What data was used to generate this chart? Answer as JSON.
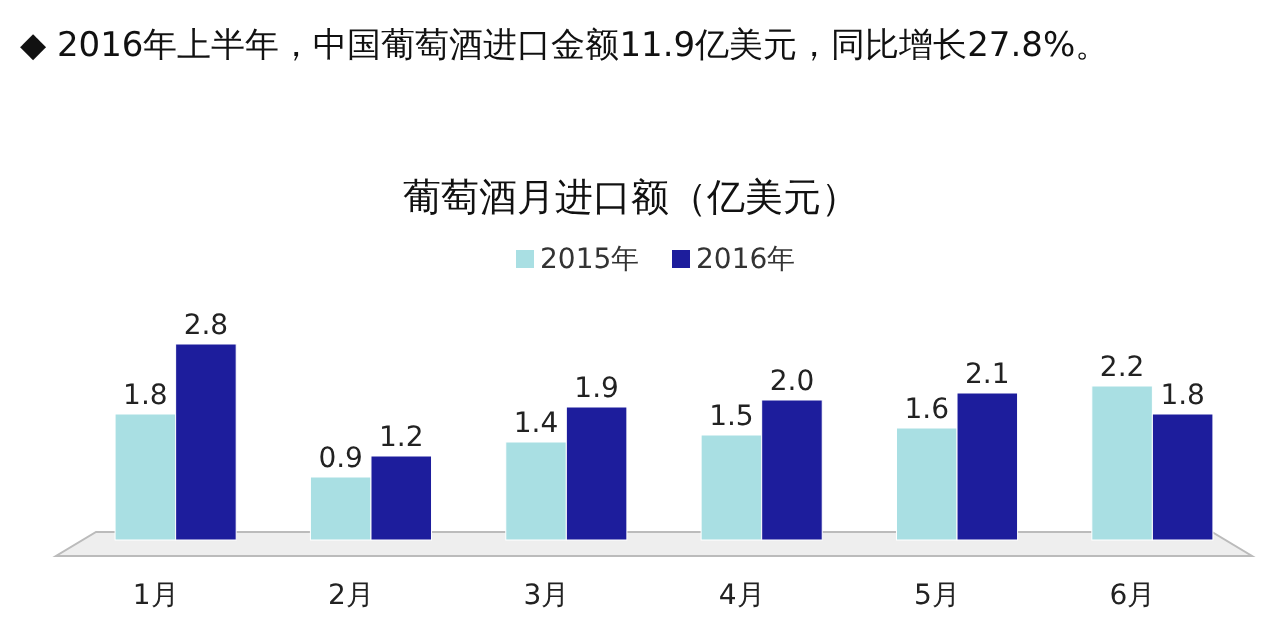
{
  "chart_data": {
    "type": "bar",
    "title": "◆ 2016年上半年，中国葡萄酒进口金额11.9亿美元，同比增长27.8%。",
    "subtitle": "葡萄酒月进口额（亿美元）",
    "categories": [
      "1月",
      "2月",
      "3月",
      "4月",
      "5月",
      "6月"
    ],
    "series": [
      {
        "name": "2015年",
        "color": "#a9dfe3",
        "values": [
          1.8,
          0.9,
          1.4,
          1.5,
          1.6,
          2.2
        ],
        "value_labels": [
          "1.8",
          "0.9",
          "1.4",
          "1.5",
          "1.6",
          "2.2"
        ]
      },
      {
        "name": "2016年",
        "color": "#1d1d9c",
        "values": [
          2.8,
          1.2,
          1.9,
          2.0,
          2.1,
          1.8
        ],
        "value_labels": [
          "2.8",
          "1.2",
          "1.9",
          "2.0",
          "2.1",
          "1.8"
        ]
      }
    ],
    "legend": "top",
    "grid": false
  }
}
